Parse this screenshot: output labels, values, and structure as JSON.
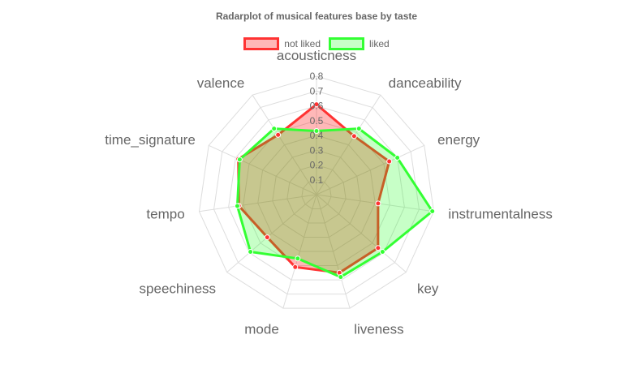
{
  "chart_data": {
    "type": "radar",
    "title": "Radarplot of musical features base by taste",
    "labels": [
      "acousticness",
      "danceability",
      "energy",
      "instrumentalness",
      "key",
      "liveness",
      "mode",
      "speechiness",
      "tempo",
      "time_signature",
      "valence"
    ],
    "r_ticks": [
      "0.1",
      "0.2",
      "0.3",
      "0.4",
      "0.5",
      "0.6",
      "0.7",
      "0.8"
    ],
    "r_max": 0.8,
    "legend_position": "top",
    "grid": true,
    "series": [
      {
        "name": "not liked",
        "color": "#ff3333",
        "fill": "rgba(255,0,0,0.28)",
        "values": [
          0.61,
          0.47,
          0.54,
          0.42,
          0.55,
          0.55,
          0.51,
          0.44,
          0.53,
          0.58,
          0.48
        ]
      },
      {
        "name": "liked",
        "color": "#33ff33",
        "fill": "rgba(0,255,0,0.22)",
        "values": [
          0.43,
          0.53,
          0.6,
          0.79,
          0.59,
          0.58,
          0.45,
          0.59,
          0.54,
          0.57,
          0.53
        ]
      }
    ]
  }
}
